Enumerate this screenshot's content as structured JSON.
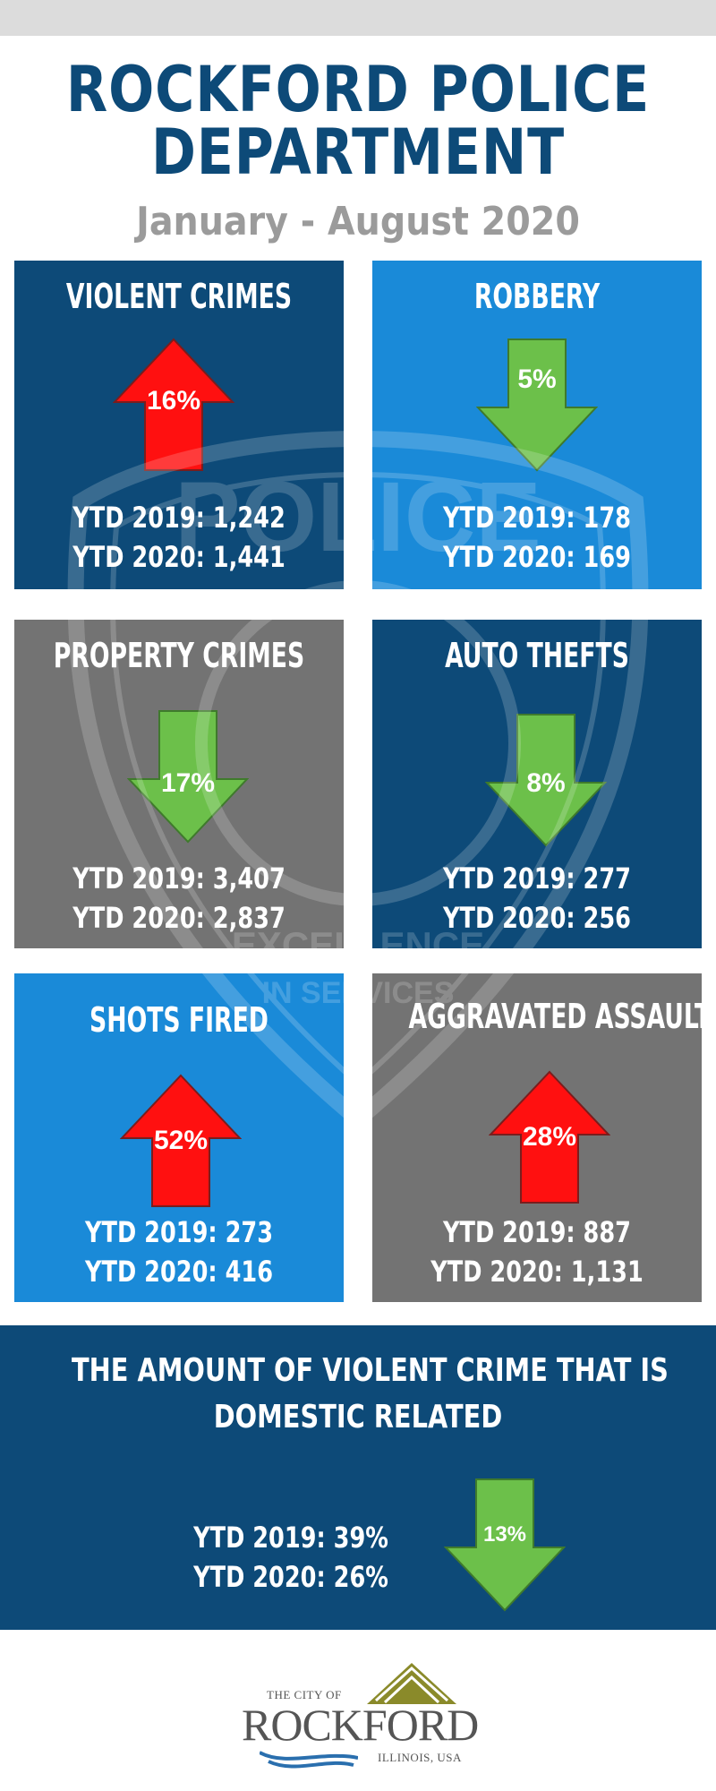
{
  "header": {
    "title_line1": "ROCKFORD POLICE",
    "title_line2": "DEPARTMENT",
    "subtitle": "January - August 2020"
  },
  "colors": {
    "dark_blue": "#0d4a78",
    "bright_blue": "#1a8ad8",
    "gray": "#737373",
    "up_arrow": "#ff1010",
    "down_arrow": "#6cc04a"
  },
  "panels": [
    {
      "title": "VIOLENT CRIMES",
      "direction": "up",
      "percent": "16%",
      "ytd2019": "YTD 2019: 1,242",
      "ytd2020": "YTD 2020: 1,441"
    },
    {
      "title": "ROBBERY",
      "direction": "down",
      "percent": "5%",
      "ytd2019": "YTD 2019: 178",
      "ytd2020": "YTD 2020: 169"
    },
    {
      "title": "PROPERTY CRIMES",
      "direction": "down",
      "percent": "17%",
      "ytd2019": "YTD 2019: 3,407",
      "ytd2020": "YTD 2020: 2,837"
    },
    {
      "title": "AUTO THEFTS",
      "direction": "down",
      "percent": "8%",
      "ytd2019": "YTD 2019: 277",
      "ytd2020": "YTD 2020: 256"
    },
    {
      "title": "SHOTS FIRED",
      "direction": "up",
      "percent": "52%",
      "ytd2019": "YTD 2019: 273",
      "ytd2020": "YTD 2020: 416"
    },
    {
      "title": "AGGRAVATED ASSAULTS",
      "direction": "up",
      "percent": "28%",
      "ytd2019": "YTD 2019: 887",
      "ytd2020": "YTD 2020: 1,131"
    }
  ],
  "domestic": {
    "title_line1": "THE AMOUNT OF VIOLENT CRIME THAT IS",
    "title_line2": "DOMESTIC RELATED",
    "direction": "down",
    "percent": "13%",
    "ytd2019": "YTD 2019: 39%",
    "ytd2020": "YTD 2020: 26%"
  },
  "watermark": {
    "line1": "POLICE",
    "line2": "EXCELLENCE",
    "line3": "IN SERVICES"
  },
  "logo": {
    "top_text": "THE CITY OF",
    "name": "ROCKFORD",
    "bottom_text": "ILLINOIS, USA"
  }
}
